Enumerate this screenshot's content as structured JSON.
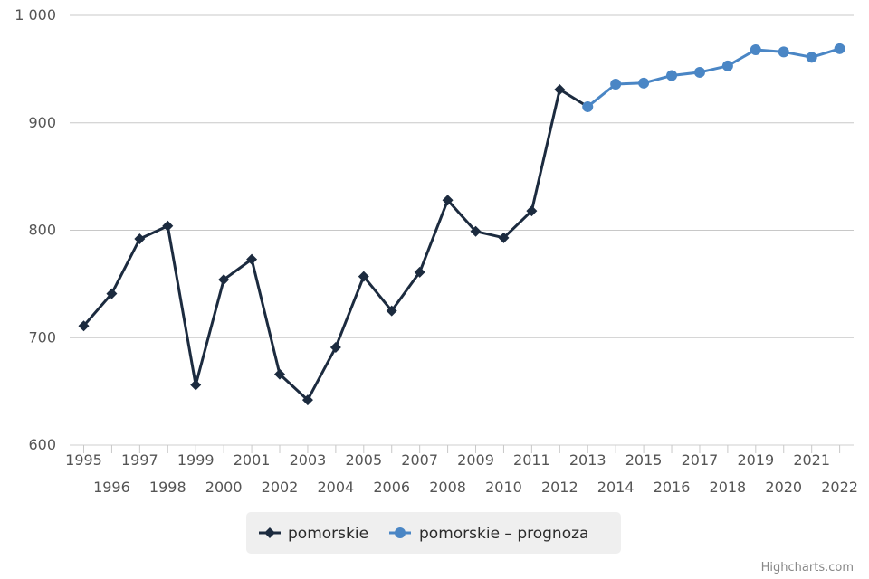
{
  "chart_data": {
    "type": "line",
    "title": "",
    "xlabel": "",
    "ylabel": "",
    "ylim": [
      600,
      1000
    ],
    "y_ticks": [
      "600",
      "700",
      "800",
      "900",
      "1 000"
    ],
    "x_ticks": [
      "1995",
      "1996",
      "1997",
      "1998",
      "1999",
      "2000",
      "2001",
      "2002",
      "2003",
      "2004",
      "2005",
      "2006",
      "2007",
      "2008",
      "2009",
      "2010",
      "2011",
      "2012",
      "2013",
      "2014",
      "2015",
      "2016",
      "2017",
      "2018",
      "2019",
      "2020",
      "2021",
      "2022"
    ],
    "grid": true,
    "legend_position": "bottom-center",
    "series": [
      {
        "name": "pomorskie",
        "color": "#1c2b3f",
        "marker": "diamond",
        "x": [
          1995,
          1996,
          1997,
          1998,
          1999,
          2000,
          2001,
          2002,
          2003,
          2004,
          2005,
          2006,
          2007,
          2008,
          2009,
          2010,
          2011,
          2012,
          2013
        ],
        "values": [
          711,
          741,
          792,
          804,
          656,
          754,
          773,
          666,
          642,
          691,
          757,
          725,
          761,
          828,
          799,
          793,
          818,
          931,
          915
        ]
      },
      {
        "name": "pomorskie – prognoza",
        "color": "#4a86c5",
        "marker": "circle",
        "x": [
          2013,
          2014,
          2015,
          2016,
          2017,
          2018,
          2019,
          2020,
          2021,
          2022
        ],
        "values": [
          915,
          936,
          937,
          944,
          947,
          953,
          968,
          966,
          961,
          969
        ]
      }
    ]
  },
  "credit": "Highcharts.com"
}
